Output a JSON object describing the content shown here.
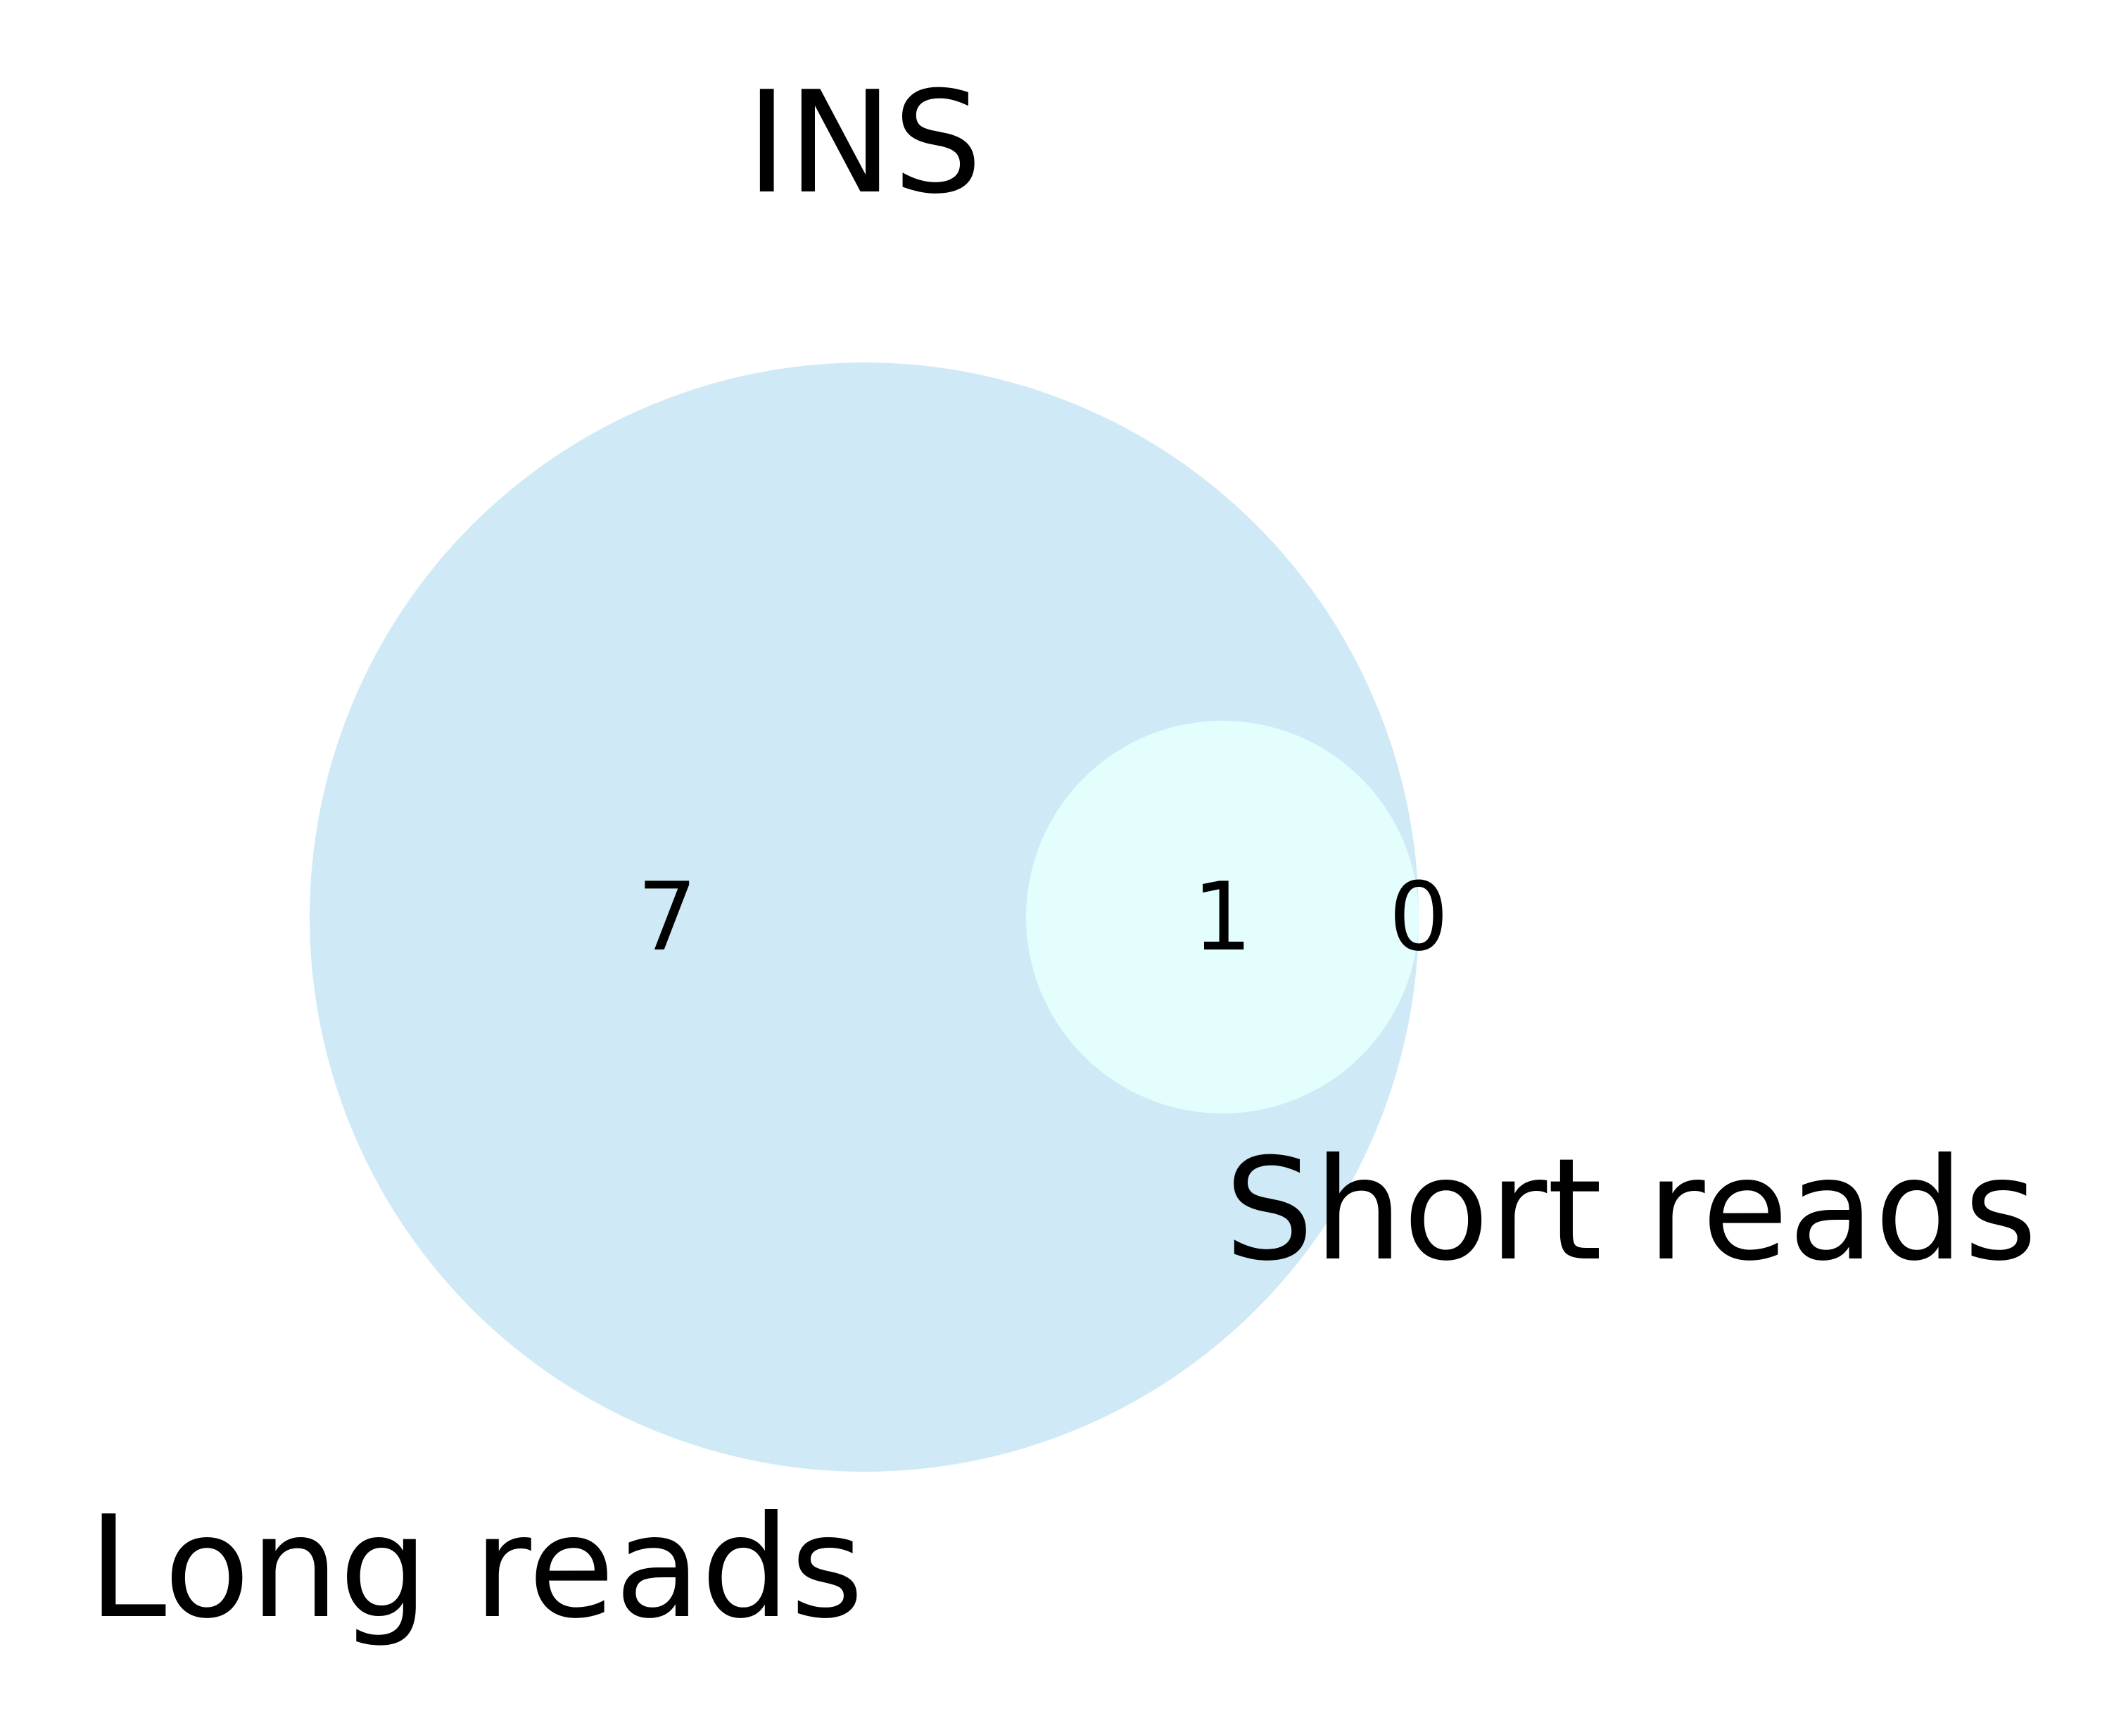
{
  "title": "INS",
  "sets": [
    {
      "name": "Long reads",
      "color": "#cfeaf6"
    },
    {
      "name": "Short reads",
      "color": "#e4fdfd"
    }
  ],
  "regions": {
    "long_only": "7",
    "both": "1",
    "short_only": "0"
  }
}
